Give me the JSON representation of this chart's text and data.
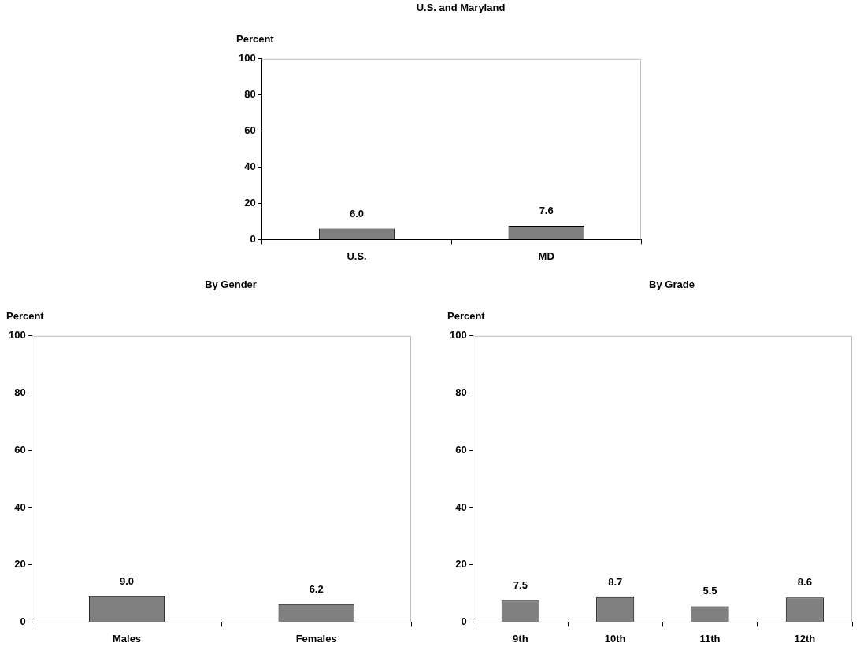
{
  "chart_data": [
    {
      "type": "bar",
      "title": "U.S. and Maryland",
      "ylabel": "Percent",
      "categories": [
        "U.S.",
        "MD"
      ],
      "values": [
        6.0,
        7.6
      ],
      "value_labels": [
        "6.0",
        "7.6"
      ],
      "color": "#808080",
      "ylim": [
        0,
        100
      ],
      "yticks": [
        0,
        20,
        40,
        60,
        80,
        100
      ],
      "grid": false
    },
    {
      "type": "bar",
      "title": "By Gender",
      "ylabel": "Percent",
      "categories": [
        "Males",
        "Females"
      ],
      "values": [
        9.0,
        6.2
      ],
      "value_labels": [
        "9.0",
        "6.2"
      ],
      "color": "#808080",
      "ylim": [
        0,
        100
      ],
      "yticks": [
        0,
        20,
        40,
        60,
        80,
        100
      ],
      "grid": false
    },
    {
      "type": "bar",
      "title": "By Grade",
      "ylabel": "Percent",
      "categories": [
        "9th",
        "10th",
        "11th",
        "12th"
      ],
      "values": [
        7.5,
        8.7,
        5.5,
        8.6
      ],
      "value_labels": [
        "7.5",
        "8.7",
        "5.5",
        "8.6"
      ],
      "color": "#808080",
      "ylim": [
        0,
        100
      ],
      "yticks": [
        0,
        20,
        40,
        60,
        80,
        100
      ],
      "grid": false
    }
  ]
}
